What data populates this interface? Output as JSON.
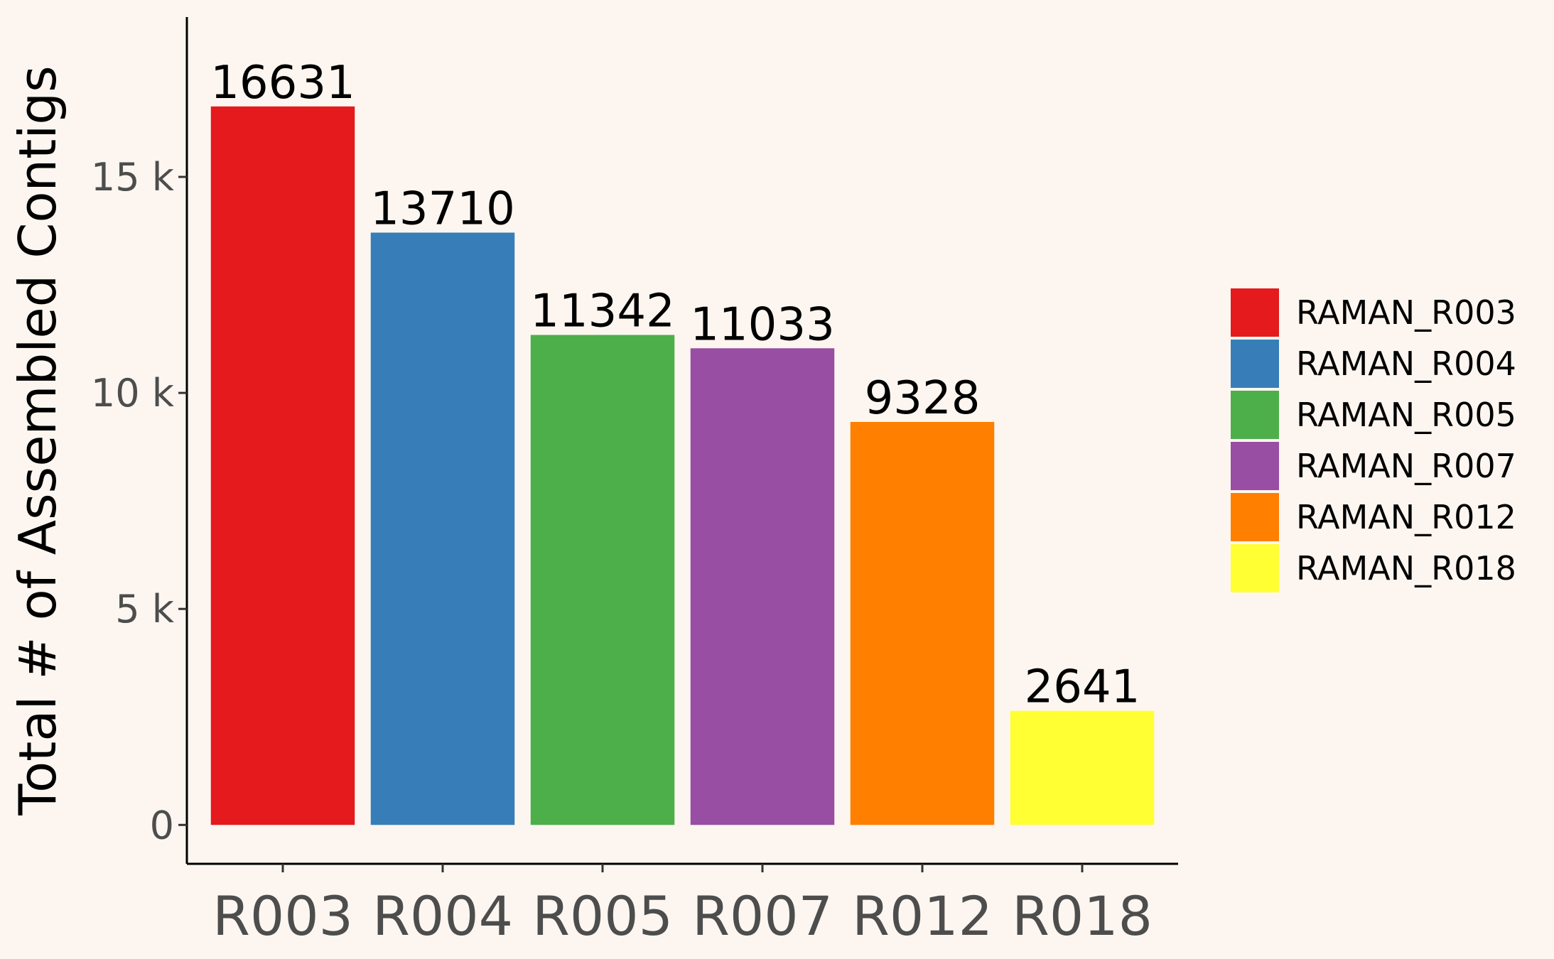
{
  "chart_data": {
    "type": "bar",
    "categories": [
      "R003",
      "R004",
      "R005",
      "R007",
      "R012",
      "R018"
    ],
    "values": [
      16631,
      13710,
      11342,
      11033,
      9328,
      2641
    ],
    "value_labels": [
      "16631",
      "13710",
      "11342",
      "11033",
      "9328",
      "2641"
    ],
    "colors": [
      "#e41a1c",
      "#377eb8",
      "#4daf4a",
      "#984ea3",
      "#ff7f00",
      "#ffff33"
    ],
    "ylabel": "Total # of Assembled Contigs",
    "ylim": [
      -900,
      18700
    ],
    "yticks": [
      0,
      5000,
      10000,
      15000
    ],
    "ytick_labels": [
      "0",
      "5 k",
      "10 k",
      "15 k"
    ],
    "grid": false,
    "legend": {
      "placement": "right",
      "entries": [
        "RAMAN_R003",
        "RAMAN_R004",
        "RAMAN_R005",
        "RAMAN_R007",
        "RAMAN_R012",
        "RAMAN_R018"
      ]
    },
    "background": "#fdf6f0"
  }
}
